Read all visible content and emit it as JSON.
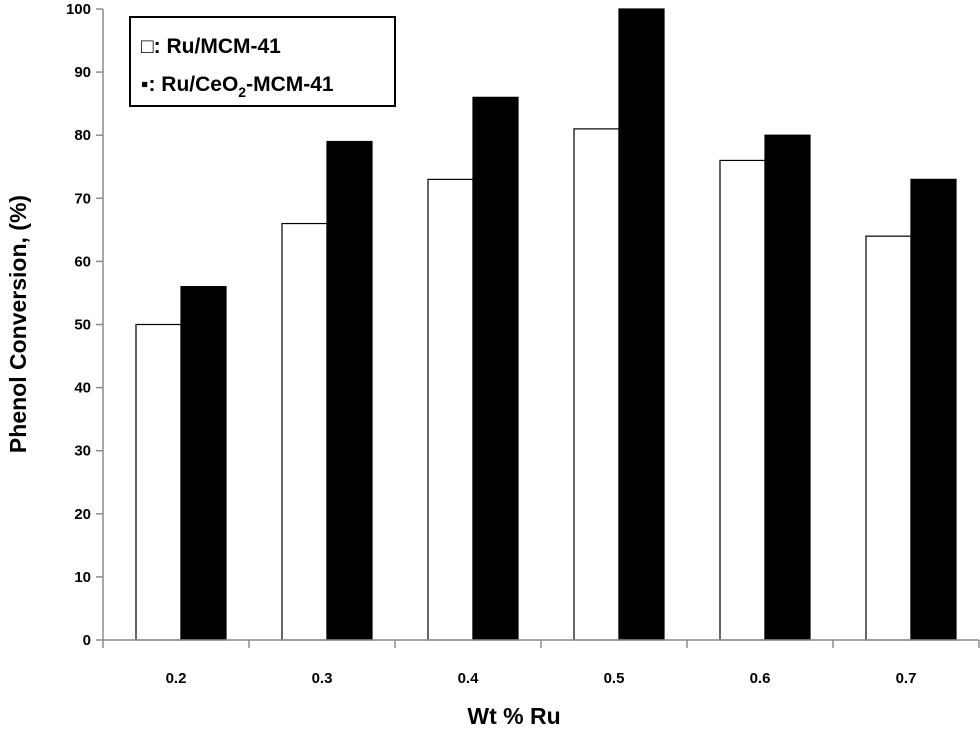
{
  "chart_data": {
    "type": "bar",
    "title": "",
    "xlabel": "Wt % Ru",
    "ylabel": "Phenol  Conversion, (%)",
    "categories": [
      "0.2",
      "0.3",
      "0.4",
      "0.5",
      "0.6",
      "0.7"
    ],
    "ylim": [
      0,
      100
    ],
    "yticks": [
      0,
      10,
      20,
      30,
      40,
      50,
      60,
      70,
      80,
      90,
      100
    ],
    "grid": false,
    "legend_position": "top-left",
    "series": [
      {
        "name": "Ru/MCM-41",
        "legend_prefix": "□: ",
        "color": "#ffffff",
        "values": [
          50,
          66,
          73,
          81,
          76,
          64
        ]
      },
      {
        "name": "Ru/CeO2-MCM-41",
        "legend_prefix": "▪: ",
        "legend_main": "Ru/CeO",
        "legend_subscript": "2",
        "legend_rest": "-MCM-41",
        "color": "#000000",
        "values": [
          56,
          79,
          86,
          100,
          80,
          73
        ]
      }
    ]
  }
}
